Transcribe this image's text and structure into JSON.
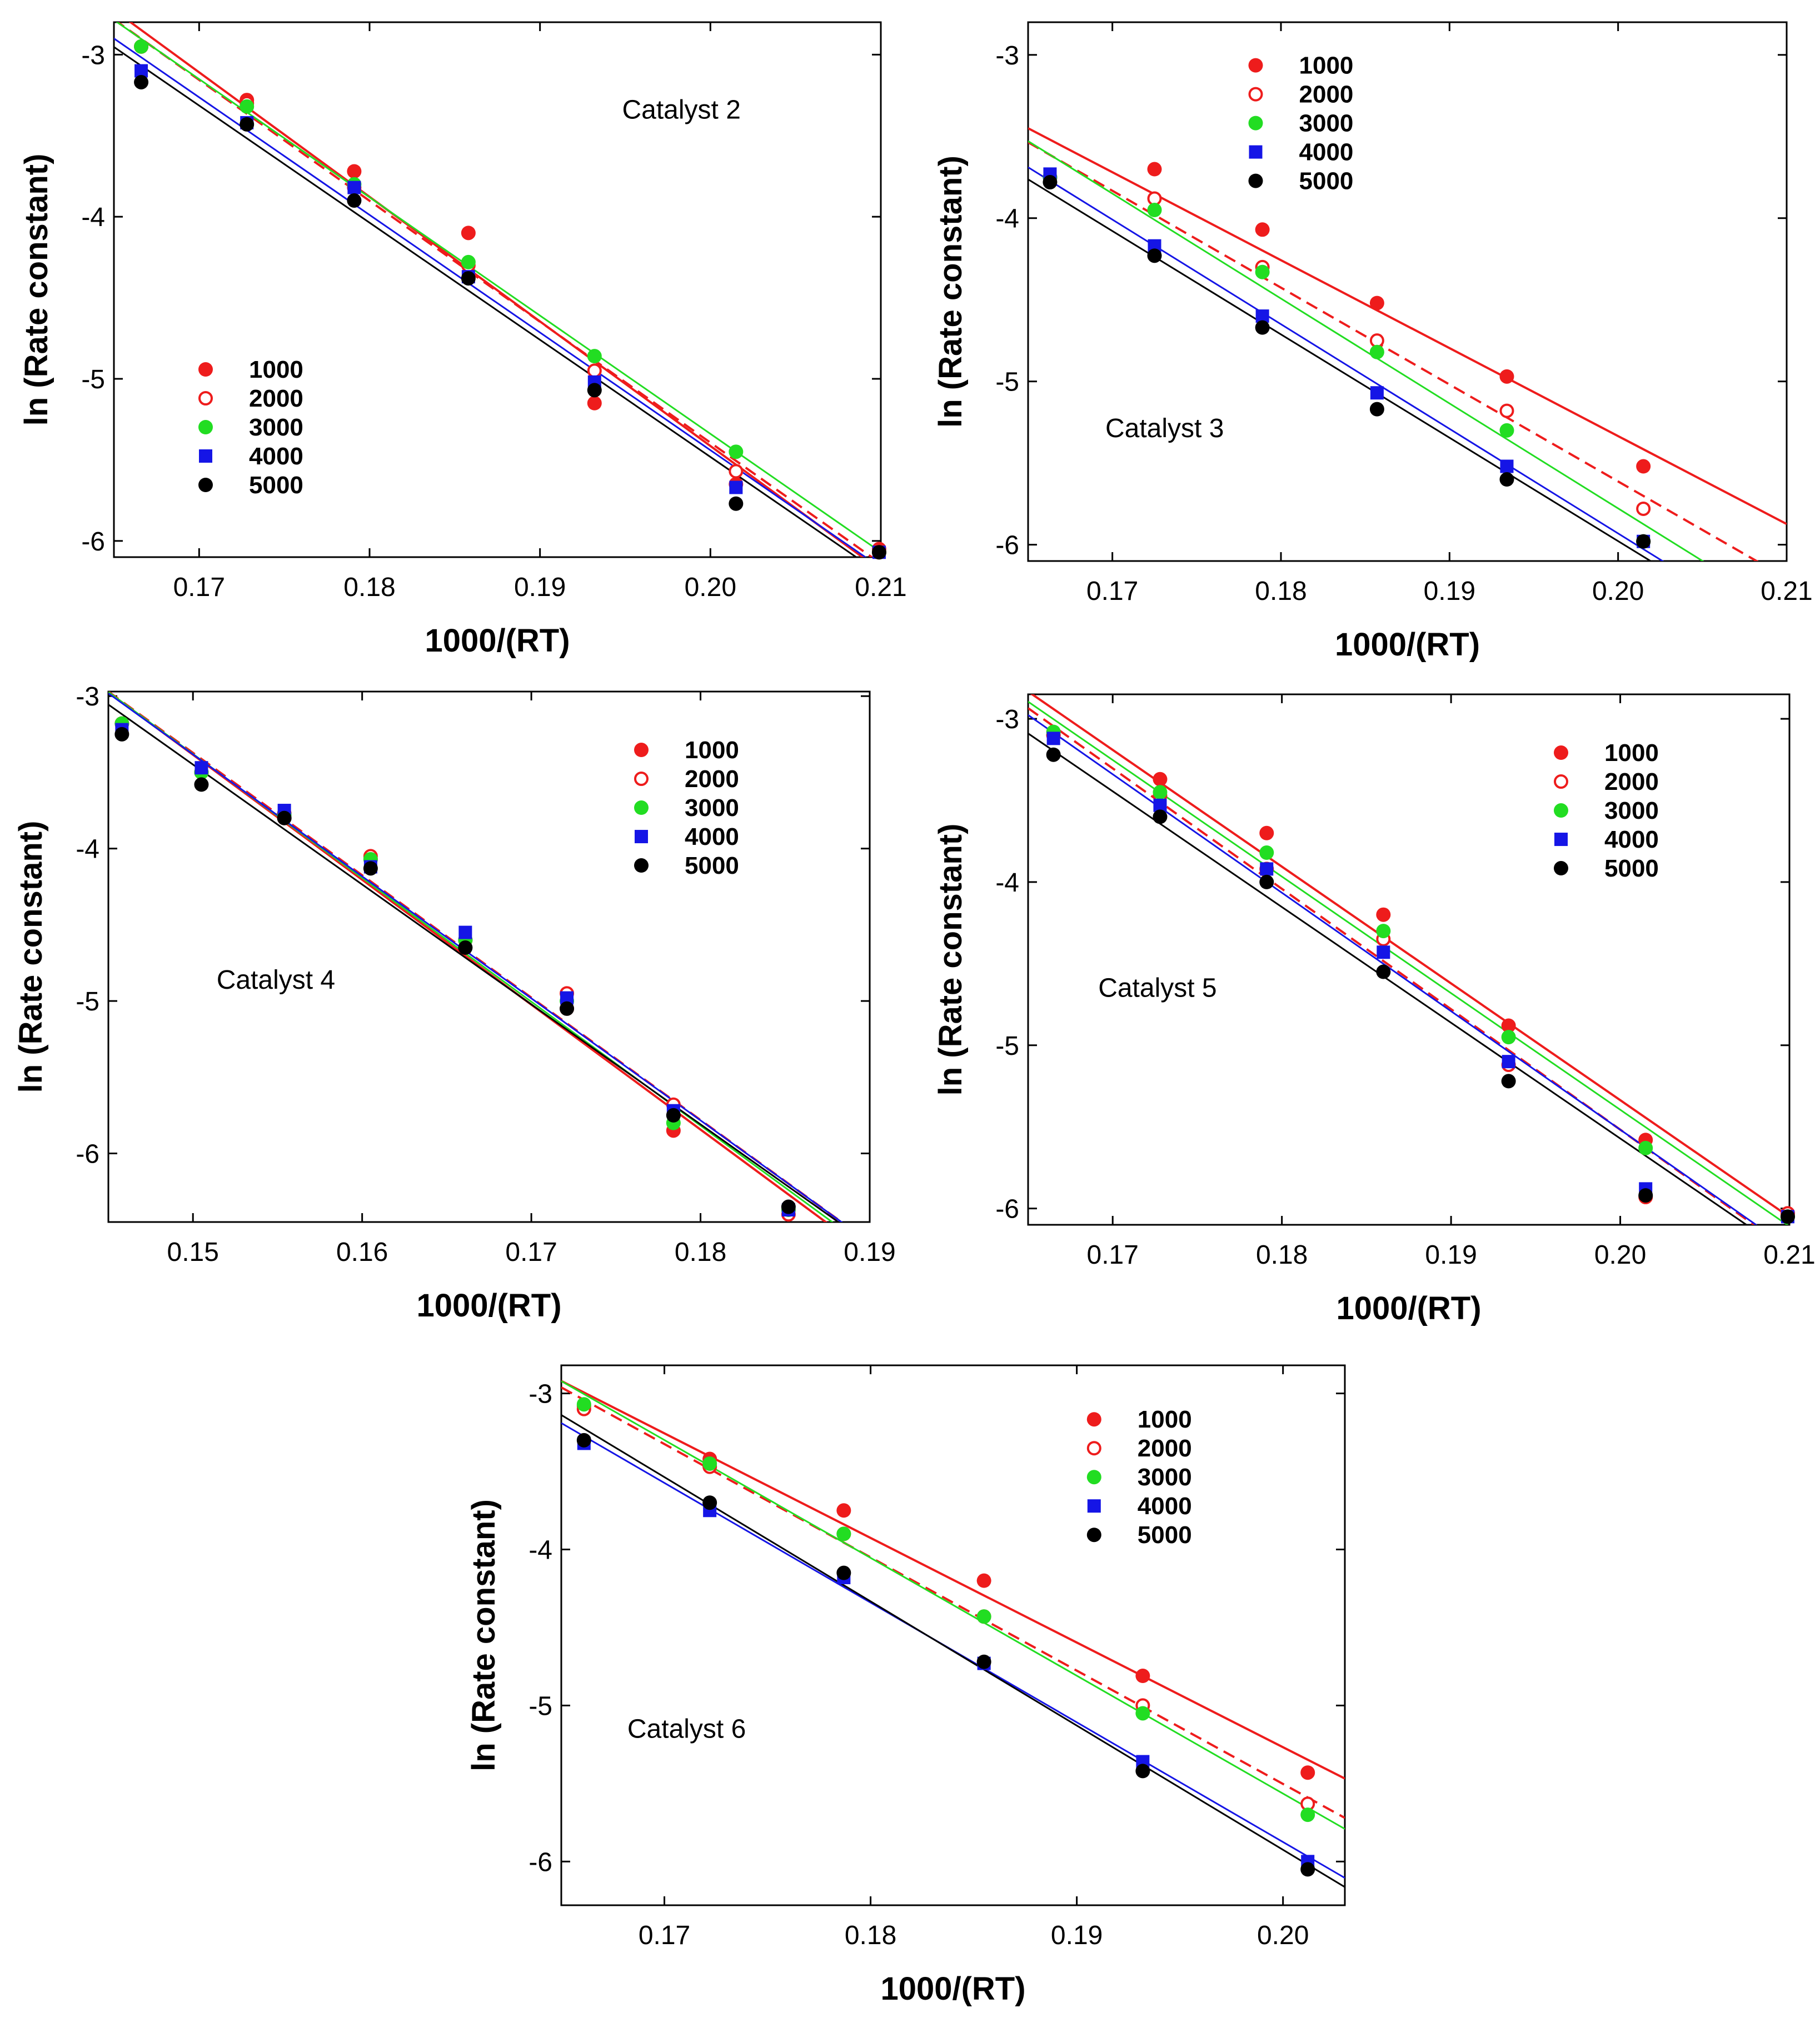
{
  "colors": {
    "1000": "#ee1c1c",
    "2000": "#ee1c1c",
    "3000": "#22dd22",
    "4000": "#1515e6",
    "5000": "#000000"
  },
  "chart_data": [
    {
      "type": "scatter",
      "title": "Catalyst 2",
      "xlabel": "1000/(RT)",
      "ylabel": "ln (Rate constant)",
      "xlim": [
        0.165,
        0.21
      ],
      "ylim": [
        -6.1,
        -2.8
      ],
      "xticks": [
        0.17,
        0.18,
        0.19,
        0.2,
        0.21
      ],
      "xtick_labels": [
        "0.17",
        "0.18",
        "0.19",
        "0.20",
        "0.21"
      ],
      "yticks": [
        -3,
        -4,
        -5,
        -6
      ],
      "ytick_labels": [
        "-3",
        "-4",
        "-5",
        "-6"
      ],
      "legend": "center-left",
      "x": [
        0.1666,
        0.1728,
        0.1791,
        0.1858,
        0.1932,
        0.2015,
        0.2099
      ],
      "series": [
        {
          "name": "1000",
          "marker": "filled-circle",
          "line": "solid",
          "values": [
            -2.95,
            -3.28,
            -3.72,
            -4.1,
            -5.15,
            -5.65,
            -6.05
          ]
        },
        {
          "name": "2000",
          "marker": "open-circle",
          "line": "dashed",
          "values": [
            -2.95,
            -3.3,
            -3.82,
            -4.3,
            -4.95,
            -5.57,
            -6.07
          ]
        },
        {
          "name": "3000",
          "marker": "filled-circle",
          "line": "solid",
          "values": [
            -2.95,
            -3.32,
            -3.8,
            -4.28,
            -4.86,
            -5.45,
            -6.07
          ]
        },
        {
          "name": "4000",
          "marker": "square",
          "line": "solid",
          "values": [
            -3.1,
            -3.42,
            -3.82,
            -4.37,
            -5.02,
            -5.67,
            -6.07
          ]
        },
        {
          "name": "5000",
          "marker": "filled-circle",
          "line": "solid",
          "values": [
            -3.17,
            -3.43,
            -3.9,
            -4.38,
            -5.07,
            -5.77,
            -6.07
          ]
        }
      ]
    },
    {
      "type": "scatter",
      "title": "Catalyst 3",
      "xlabel": "1000/(RT)",
      "ylabel": "ln (Rate constant)",
      "xlim": [
        0.165,
        0.21
      ],
      "ylim": [
        -6.1,
        -2.8
      ],
      "xticks": [
        0.17,
        0.18,
        0.19,
        0.2,
        0.21
      ],
      "xtick_labels": [
        "0.17",
        "0.18",
        "0.19",
        "0.20",
        "0.21"
      ],
      "yticks": [
        -3,
        -4,
        -5,
        -6
      ],
      "ytick_labels": [
        "-3",
        "-4",
        "-5",
        "-6"
      ],
      "legend": "top-right",
      "x": [
        0.1663,
        0.1725,
        0.1789,
        0.1857,
        0.1934,
        0.2015
      ],
      "series": [
        {
          "name": "1000",
          "marker": "filled-circle",
          "line": "solid",
          "values": [
            -3.75,
            -3.7,
            -4.07,
            -4.52,
            -4.97,
            -5.52
          ]
        },
        {
          "name": "2000",
          "marker": "open-circle",
          "line": "dashed",
          "values": [
            -3.75,
            -3.88,
            -4.3,
            -4.75,
            -5.18,
            -5.78
          ]
        },
        {
          "name": "3000",
          "marker": "filled-circle",
          "line": "solid",
          "values": [
            -3.75,
            -3.95,
            -4.33,
            -4.82,
            -5.3,
            -5.98
          ]
        },
        {
          "name": "4000",
          "marker": "square",
          "line": "solid",
          "values": [
            -3.73,
            -4.17,
            -4.6,
            -5.07,
            -5.52,
            -5.98
          ]
        },
        {
          "name": "5000",
          "marker": "filled-circle",
          "line": "solid",
          "values": [
            -3.78,
            -4.23,
            -4.67,
            -5.17,
            -5.6,
            -5.98
          ]
        }
      ]
    },
    {
      "type": "scatter",
      "title": "Catalyst 4",
      "xlabel": "1000/(RT)",
      "ylabel": "ln (Rate constant)",
      "xlim": [
        0.145,
        0.19
      ],
      "ylim": [
        -6.45,
        -2.97
      ],
      "xticks": [
        0.15,
        0.16,
        0.17,
        0.18,
        0.19
      ],
      "xtick_labels": [
        "0.15",
        "0.16",
        "0.17",
        "0.18",
        "0.19"
      ],
      "yticks": [
        -3,
        -4,
        -5,
        -6
      ],
      "ytick_labels": [
        "-3",
        "-4",
        "-5",
        "-6"
      ],
      "legend": "top-right",
      "x": [
        0.1458,
        0.1505,
        0.1554,
        0.1605,
        0.1661,
        0.1721,
        0.1784,
        0.1852
      ],
      "series": [
        {
          "name": "1000",
          "marker": "filled-circle",
          "line": "solid",
          "values": [
            -3.18,
            -3.5,
            -3.8,
            -4.07,
            -4.6,
            -5.05,
            -5.85,
            -6.37
          ]
        },
        {
          "name": "2000",
          "marker": "open-circle",
          "line": "dashed",
          "values": [
            -3.18,
            -3.5,
            -3.77,
            -4.05,
            -4.6,
            -4.95,
            -5.68,
            -6.4
          ]
        },
        {
          "name": "3000",
          "marker": "filled-circle",
          "line": "solid",
          "values": [
            -3.18,
            -3.5,
            -3.78,
            -4.07,
            -4.6,
            -5.0,
            -5.8,
            -6.37
          ]
        },
        {
          "name": "4000",
          "marker": "square",
          "line": "solid",
          "values": [
            -3.22,
            -3.47,
            -3.75,
            -4.12,
            -4.55,
            -4.98,
            -5.72,
            -6.37
          ]
        },
        {
          "name": "5000",
          "marker": "filled-circle",
          "line": "solid",
          "values": [
            -3.25,
            -3.58,
            -3.8,
            -4.13,
            -4.65,
            -5.05,
            -5.75,
            -6.35
          ]
        }
      ]
    },
    {
      "type": "scatter",
      "title": "Catalyst 5",
      "xlabel": "1000/(RT)",
      "ylabel": "ln (Rate constant)",
      "xlim": [
        0.165,
        0.21
      ],
      "ylim": [
        -6.1,
        -2.85
      ],
      "xticks": [
        0.17,
        0.18,
        0.19,
        0.2,
        0.21
      ],
      "xtick_labels": [
        "0.17",
        "0.18",
        "0.19",
        "0.20",
        "0.21"
      ],
      "yticks": [
        -3,
        -4,
        -5,
        -6
      ],
      "ytick_labels": [
        "-3",
        "-4",
        "-5",
        "-6"
      ],
      "legend": "top-right",
      "x": [
        0.1665,
        0.1728,
        0.1791,
        0.186,
        0.1934,
        0.2015,
        0.2099
      ],
      "series": [
        {
          "name": "1000",
          "marker": "filled-circle",
          "line": "solid",
          "values": [
            -3.1,
            -3.37,
            -3.7,
            -4.2,
            -4.88,
            -5.58,
            -6.03
          ]
        },
        {
          "name": "2000",
          "marker": "open-circle",
          "line": "dashed",
          "values": [
            -3.1,
            -3.47,
            -3.92,
            -4.35,
            -5.12,
            -5.93,
            -6.03
          ]
        },
        {
          "name": "3000",
          "marker": "filled-circle",
          "line": "solid",
          "values": [
            -3.08,
            -3.45,
            -3.82,
            -4.3,
            -4.95,
            -5.63,
            -6.05
          ]
        },
        {
          "name": "4000",
          "marker": "square",
          "line": "solid",
          "values": [
            -3.12,
            -3.53,
            -3.92,
            -4.43,
            -5.1,
            -5.88,
            -6.05
          ]
        },
        {
          "name": "5000",
          "marker": "filled-circle",
          "line": "solid",
          "values": [
            -3.22,
            -3.6,
            -4.0,
            -4.55,
            -5.22,
            -5.92,
            -6.05
          ]
        }
      ]
    },
    {
      "type": "scatter",
      "title": "Catalyst 6",
      "xlabel": "1000/(RT)",
      "ylabel": "ln (Rate constant)",
      "xlim": [
        0.165,
        0.203
      ],
      "ylim": [
        -6.28,
        -2.82
      ],
      "xticks": [
        0.17,
        0.18,
        0.19,
        0.2
      ],
      "xtick_labels": [
        "0.17",
        "0.18",
        "0.19",
        "0.20"
      ],
      "yticks": [
        -3,
        -4,
        -5,
        -6
      ],
      "ytick_labels": [
        "-3",
        "-4",
        "-5",
        "-6"
      ],
      "legend": "top-right",
      "x": [
        0.1661,
        0.1722,
        0.1787,
        0.1855,
        0.1932,
        0.2012
      ],
      "series": [
        {
          "name": "1000",
          "marker": "filled-circle",
          "line": "solid",
          "values": [
            -3.08,
            -3.42,
            -3.75,
            -4.2,
            -4.81,
            -5.43
          ]
        },
        {
          "name": "2000",
          "marker": "open-circle",
          "line": "dashed",
          "values": [
            -3.1,
            -3.47,
            -3.9,
            -4.43,
            -5.0,
            -5.63
          ]
        },
        {
          "name": "3000",
          "marker": "filled-circle",
          "line": "solid",
          "values": [
            -3.07,
            -3.45,
            -3.9,
            -4.43,
            -5.05,
            -5.7
          ]
        },
        {
          "name": "4000",
          "marker": "square",
          "line": "solid",
          "values": [
            -3.32,
            -3.75,
            -4.18,
            -4.73,
            -5.36,
            -6.0
          ]
        },
        {
          "name": "5000",
          "marker": "filled-circle",
          "line": "solid",
          "values": [
            -3.3,
            -3.7,
            -4.15,
            -4.72,
            -5.42,
            -6.05
          ]
        }
      ]
    }
  ]
}
